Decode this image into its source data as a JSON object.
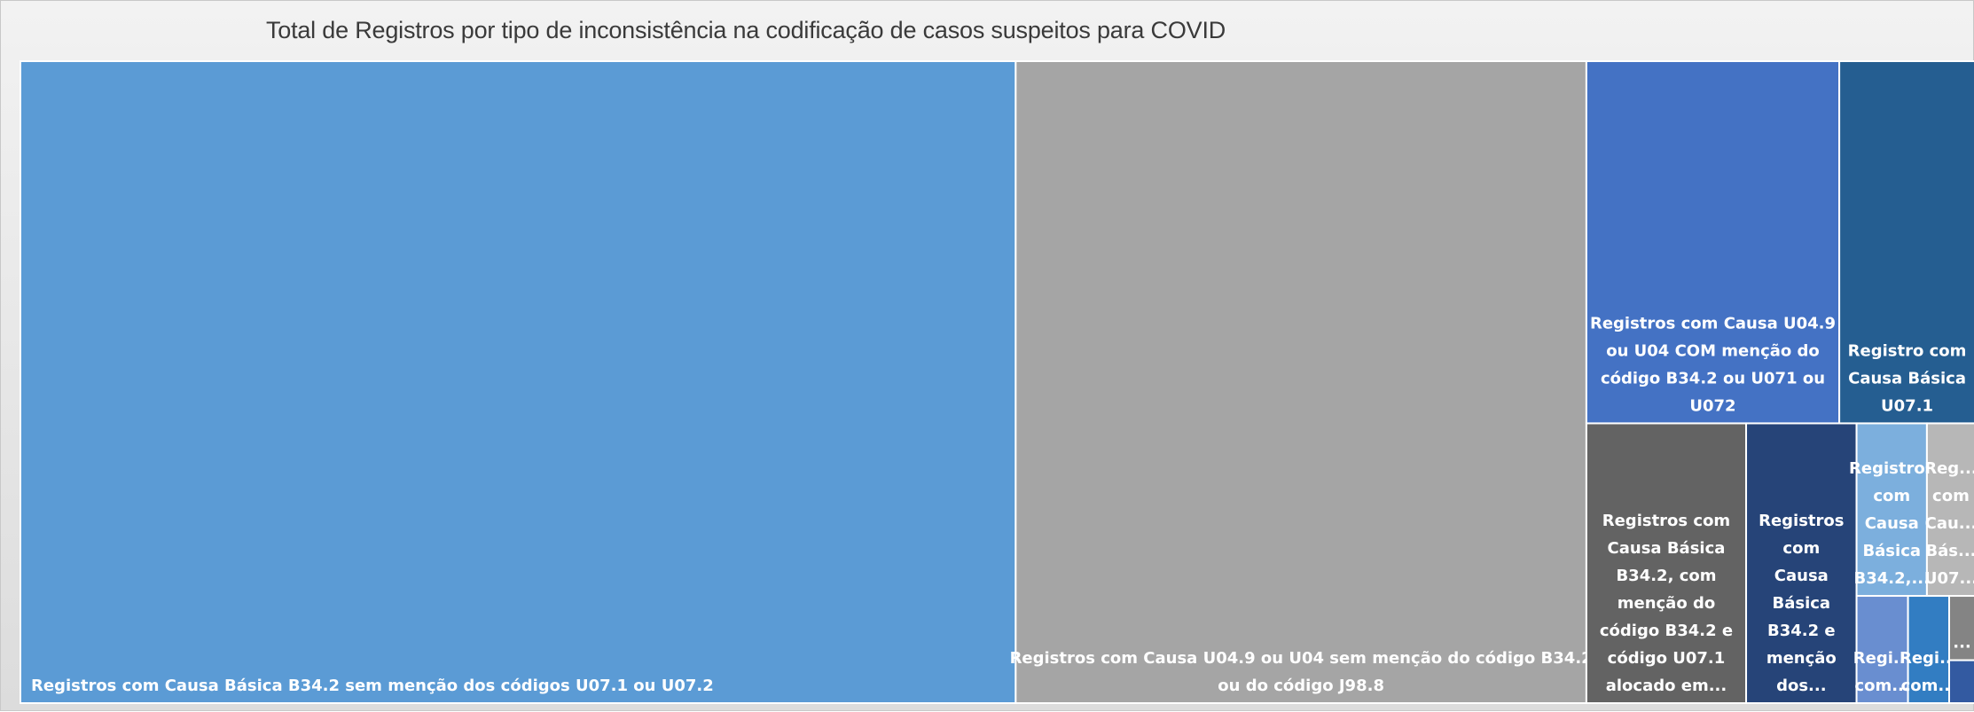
{
  "chart_data": {
    "type": "treemap",
    "title": "Total de Registros por tipo de inconsistência na codificação de casos suspeitos para COVID",
    "items": [
      {
        "label": [
          "Registros com Causa Básica B34.2 sem menção dos códigos U07.1 ou U07.2"
        ],
        "value": 1158,
        "color": "#5b9bd5",
        "align": "left"
      },
      {
        "label": [
          "Registros com Causa U04.9 ou U04 sem menção do código B34.2",
          "ou do código J98.8"
        ],
        "value": 664,
        "color": "#a5a5a5",
        "align": "center"
      },
      {
        "label": [
          "Registros com Causa U04.9",
          "ou U04 COM menção do",
          "código B34.2 ou U071 ou",
          "U072"
        ],
        "value": 166,
        "color": "#4472c4",
        "align": "center"
      },
      {
        "label": [
          "Registro com",
          "Causa Básica",
          "U07.1"
        ],
        "value": 89,
        "color": "#255e91",
        "align": "center"
      },
      {
        "label": [
          "Registros com",
          "Causa Básica",
          "B34.2, com",
          "menção do",
          "código B34.2 e",
          "código U07.1",
          "alocado em..."
        ],
        "value": 81,
        "color": "#636363",
        "align": "center"
      },
      {
        "label": [
          "Registros",
          "com",
          "Causa",
          "Básica",
          "B34.2 e",
          "menção",
          "dos..."
        ],
        "value": 56,
        "color": "#264478",
        "align": "center"
      },
      {
        "label": [
          "Registros",
          "com",
          "Causa",
          "Básica",
          "B34.2,..."
        ],
        "value": 22,
        "color": "#7cafdd",
        "align": "center"
      },
      {
        "label": [
          "Reg...",
          "com",
          "Cau...",
          "Bás...",
          "U07..."
        ],
        "value": 15,
        "color": "#b7b7b7",
        "align": "center"
      },
      {
        "label": [
          "Regi...",
          "com..."
        ],
        "value": 10,
        "color": "#698ed0",
        "align": "center"
      },
      {
        "label": [
          "Regi...",
          "com..."
        ],
        "value": 8,
        "color": "#327dc2",
        "align": "center"
      },
      {
        "label": [
          "..."
        ],
        "value": 3,
        "color": "#848484",
        "align": "center"
      },
      {
        "label": [],
        "value": 2,
        "color": "#335aa1",
        "align": "center"
      }
    ]
  }
}
